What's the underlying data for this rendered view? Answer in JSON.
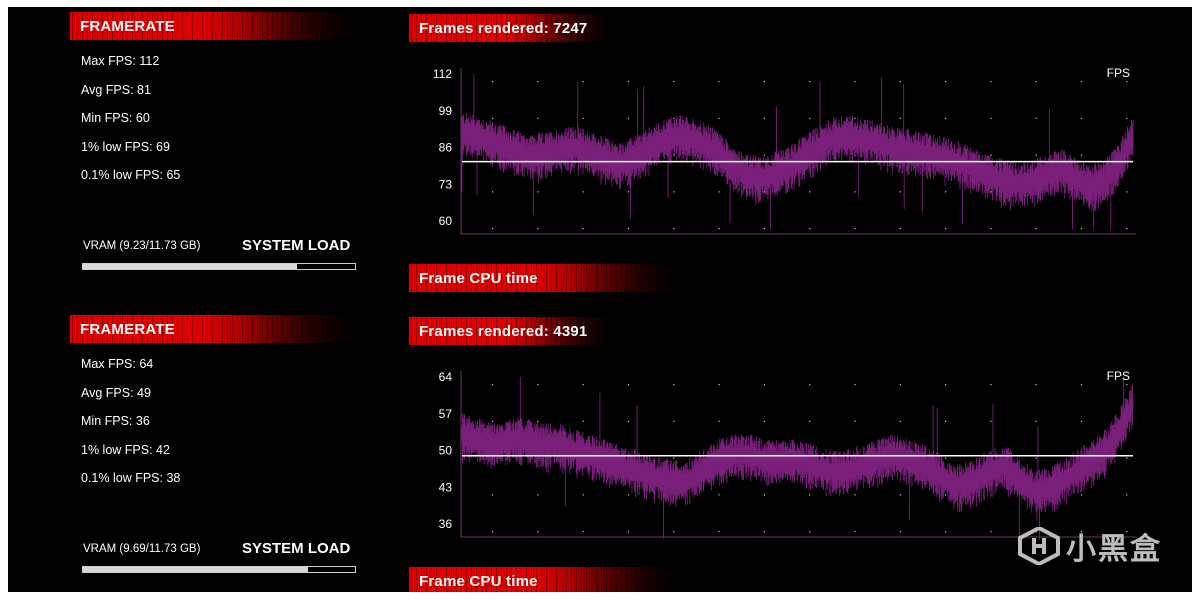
{
  "panels": [
    {
      "framerate_title": "FRAMERATE",
      "stats": [
        "Max FPS: 112",
        "Avg FPS: 81",
        "Min FPS: 60",
        "1% low FPS: 69",
        "0.1% low FPS: 65"
      ],
      "vram_label": "VRAM (9.23/11.73 GB)",
      "vram_usage_fraction": 0.787,
      "system_load_label": "SYSTEM LOAD",
      "frames_rendered_label": "Frames rendered: 7247",
      "frame_cpu_label": "Frame CPU time",
      "chart_data": {
        "type": "line",
        "unit_label": "FPS",
        "y_ticks": [
          "112",
          "99",
          "86",
          "73",
          "60"
        ],
        "ylim": [
          60,
          112
        ],
        "average_line": 81,
        "series_color": "#7a1f7a",
        "avg_line_color": "#ffffff",
        "frames": 7247,
        "trend": [
          91,
          90,
          88,
          86,
          84,
          83,
          84,
          85,
          86,
          84,
          82,
          80,
          82,
          85,
          88,
          90,
          89,
          87,
          84,
          79,
          76,
          75,
          77,
          79,
          83,
          86,
          89,
          90,
          89,
          88,
          86,
          85,
          84,
          83,
          82,
          80,
          78,
          76,
          74,
          73,
          74,
          76,
          78,
          75,
          72,
          74,
          80,
          90
        ]
      }
    },
    {
      "framerate_title": "FRAMERATE",
      "stats": [
        "Max FPS: 64",
        "Avg FPS: 49",
        "Min FPS: 36",
        "1% low FPS: 42",
        "0.1% low FPS: 38"
      ],
      "vram_label": "VRAM (9.69/11.73 GB)",
      "vram_usage_fraction": 0.826,
      "system_load_label": "SYSTEM LOAD",
      "frames_rendered_label": "Frames rendered: 4391",
      "frame_cpu_label": "Frame CPU time",
      "chart_data": {
        "type": "line",
        "unit_label": "FPS",
        "y_ticks": [
          "64",
          "57",
          "50",
          "43",
          "36"
        ],
        "ylim": [
          36,
          64
        ],
        "average_line": 49,
        "series_color": "#7a1f7a",
        "avg_line_color": "#ffffff",
        "frames": 4391,
        "trend": [
          53,
          52,
          51,
          52,
          52,
          51,
          51,
          50,
          49,
          48,
          47,
          46,
          45,
          44,
          44,
          46,
          48,
          49,
          49,
          48,
          48,
          48,
          47,
          46,
          46,
          47,
          48,
          49,
          48,
          47,
          45,
          43,
          44,
          46,
          47,
          44,
          42,
          43,
          45,
          47,
          49,
          53,
          59
        ]
      }
    }
  ],
  "watermark": {
    "text": "小黑盒",
    "icon": "heybox-logo-icon"
  }
}
